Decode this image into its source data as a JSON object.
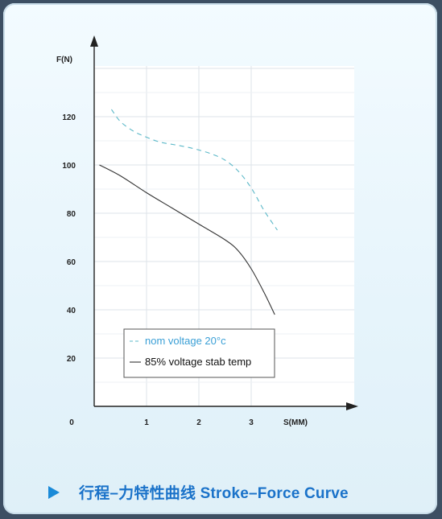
{
  "chart_data": {
    "type": "line",
    "ylabel": "F(N)",
    "xlabel": "S(MM)",
    "origin_label": "0",
    "xlim": [
      0,
      3.5
    ],
    "ylim": [
      0,
      140
    ],
    "x_ticks": [
      1,
      2,
      3
    ],
    "y_ticks": [
      20,
      40,
      60,
      80,
      100,
      120
    ],
    "grid": true,
    "legend_position": "bottom-left",
    "series": [
      {
        "name": "nom  voltage 20°c",
        "color": "#5bb8c8",
        "dash": "dashed",
        "points": [
          [
            0.33,
            123
          ],
          [
            0.5,
            118
          ],
          [
            0.75,
            114
          ],
          [
            1.0,
            111.5
          ],
          [
            1.25,
            109.5
          ],
          [
            1.5,
            108.5
          ],
          [
            1.75,
            107.5
          ],
          [
            2.0,
            106.2
          ],
          [
            2.25,
            104.5
          ],
          [
            2.5,
            102
          ],
          [
            2.75,
            97.5
          ],
          [
            3.0,
            90.5
          ],
          [
            3.25,
            81
          ],
          [
            3.5,
            73
          ]
        ]
      },
      {
        "name": "85%  voltage stab temp",
        "color": "#333333",
        "dash": "solid",
        "points": [
          [
            0.1,
            100
          ],
          [
            0.5,
            95.5
          ],
          [
            1.0,
            88.5
          ],
          [
            1.5,
            82
          ],
          [
            2.0,
            75.5
          ],
          [
            2.5,
            69
          ],
          [
            2.75,
            64.5
          ],
          [
            3.0,
            57
          ],
          [
            3.25,
            47
          ],
          [
            3.45,
            38
          ]
        ]
      }
    ]
  },
  "caption": {
    "text": "行程–力特性曲线 Stroke–Force Curve"
  }
}
